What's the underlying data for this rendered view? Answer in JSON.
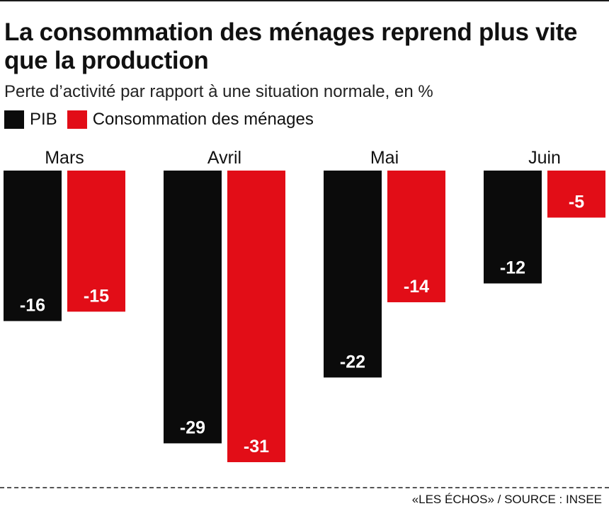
{
  "title": "La consommation des ménages reprend plus vite que la production",
  "subtitle": "Perte d’activité par rapport à une situation normale, en %",
  "source": "«LES ÉCHOS» / SOURCE : INSEE",
  "colors": {
    "pib": "#0b0b0b",
    "consommation": "#e20d17",
    "text": "#111111"
  },
  "chart_data": {
    "type": "bar",
    "categories": [
      "Mars",
      "Avril",
      "Mai",
      "Juin"
    ],
    "series": [
      {
        "name": "PIB",
        "values": [
          -16,
          -29,
          -22,
          -12
        ],
        "data_labels": [
          "-16",
          "-29",
          "-22",
          "-12"
        ]
      },
      {
        "name": "Consommation des ménages",
        "values": [
          -15,
          -31,
          -14,
          -5
        ],
        "data_labels": [
          "-15",
          "-31",
          "-14",
          "-5"
        ]
      }
    ],
    "ylim": [
      -31,
      0
    ],
    "grid": false,
    "legend_position": "top-left"
  }
}
